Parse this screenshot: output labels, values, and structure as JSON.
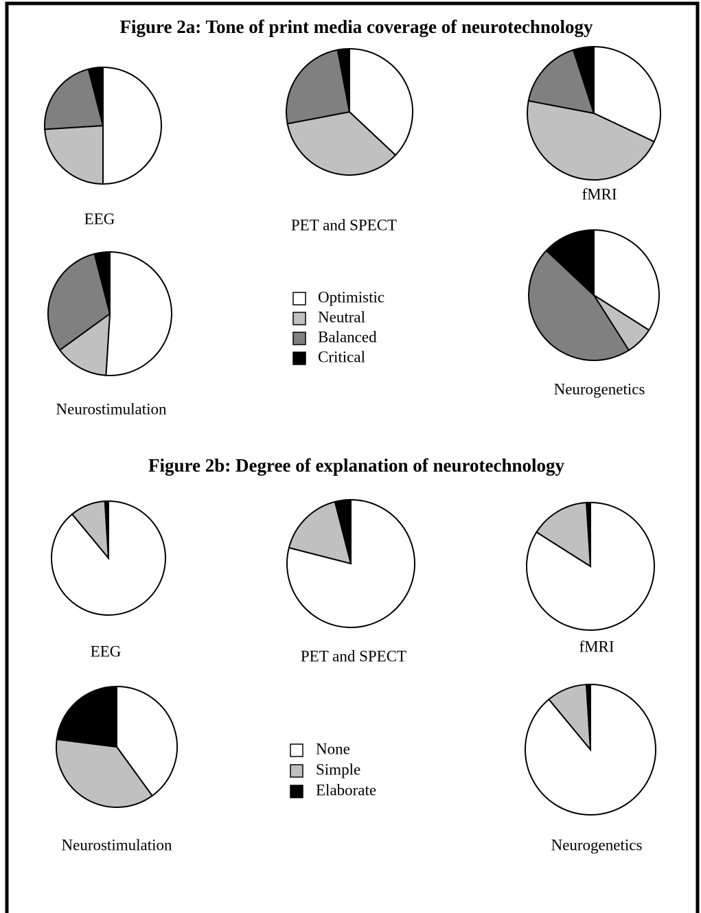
{
  "chart_data": [
    {
      "type": "pie",
      "title": "Figure 2a: Tone of print media coverage of neurotechnology",
      "categories": [
        "Optimistic",
        "Neutral",
        "Balanced",
        "Critical"
      ],
      "colors": [
        "#ffffff",
        "#c0c0c0",
        "#808080",
        "#000000"
      ],
      "pies": [
        {
          "name": "EEG",
          "values": [
            50,
            24,
            22,
            4
          ]
        },
        {
          "name": "PET and SPECT",
          "values": [
            37,
            35,
            25,
            3
          ]
        },
        {
          "name": "fMRI",
          "values": [
            32,
            46,
            17,
            5
          ]
        },
        {
          "name": "Neurostimulation",
          "values": [
            51,
            14,
            31,
            4
          ]
        },
        {
          "name": "Neurogenetics",
          "values": [
            34,
            7,
            46,
            13
          ]
        }
      ]
    },
    {
      "type": "pie",
      "title": "Figure 2b: Degree of explanation of neurotechnology",
      "categories": [
        "None",
        "Simple",
        "Elaborate"
      ],
      "colors": [
        "#ffffff",
        "#c0c0c0",
        "#000000"
      ],
      "pies": [
        {
          "name": "EEG",
          "values": [
            89,
            10,
            1
          ]
        },
        {
          "name": "PET and SPECT",
          "values": [
            79,
            17,
            4
          ]
        },
        {
          "name": "fMRI",
          "values": [
            84,
            15,
            1
          ]
        },
        {
          "name": "Neurostimulation",
          "values": [
            40,
            37,
            23
          ]
        },
        {
          "name": "Neurogenetics",
          "values": [
            89,
            10,
            1
          ]
        }
      ]
    }
  ]
}
